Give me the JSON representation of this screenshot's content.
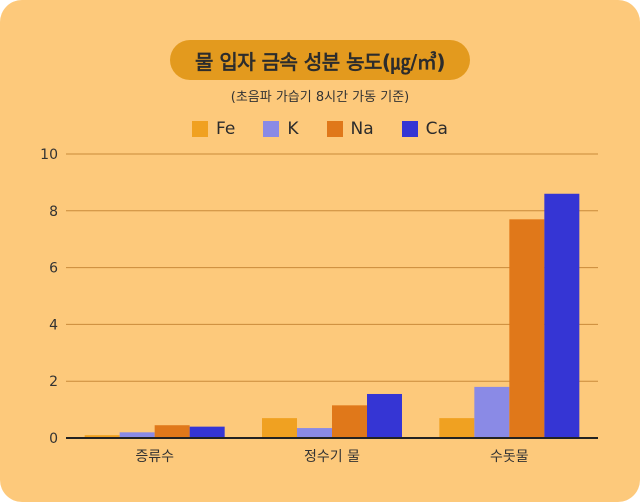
{
  "chart_data": {
    "type": "bar",
    "title": "물 입자 금속 성분 농도(㎍/㎥)",
    "subtitle": "(초음파 가습기 8시간 가동 기준)",
    "categories": [
      "증류수",
      "정수기 물",
      "수돗물"
    ],
    "series": [
      {
        "name": "Fe",
        "color": "#f0a121",
        "values": [
          0.1,
          0.7,
          0.7
        ]
      },
      {
        "name": "K",
        "color": "#8a8ae6",
        "values": [
          0.2,
          0.35,
          1.8
        ]
      },
      {
        "name": "Na",
        "color": "#e0781a",
        "values": [
          0.45,
          1.15,
          7.7
        ]
      },
      {
        "name": "Ca",
        "color": "#3535d4",
        "values": [
          0.4,
          1.55,
          8.6
        ]
      }
    ],
    "ylim": [
      0,
      10
    ],
    "yticks": [
      "0",
      "2",
      "4",
      "6",
      "8",
      "10"
    ],
    "xlabel": "",
    "ylabel": "",
    "grid": true,
    "legend": "top-center"
  },
  "colors": {
    "background": "#fdc97b",
    "title_pill": "#e39a1e"
  }
}
